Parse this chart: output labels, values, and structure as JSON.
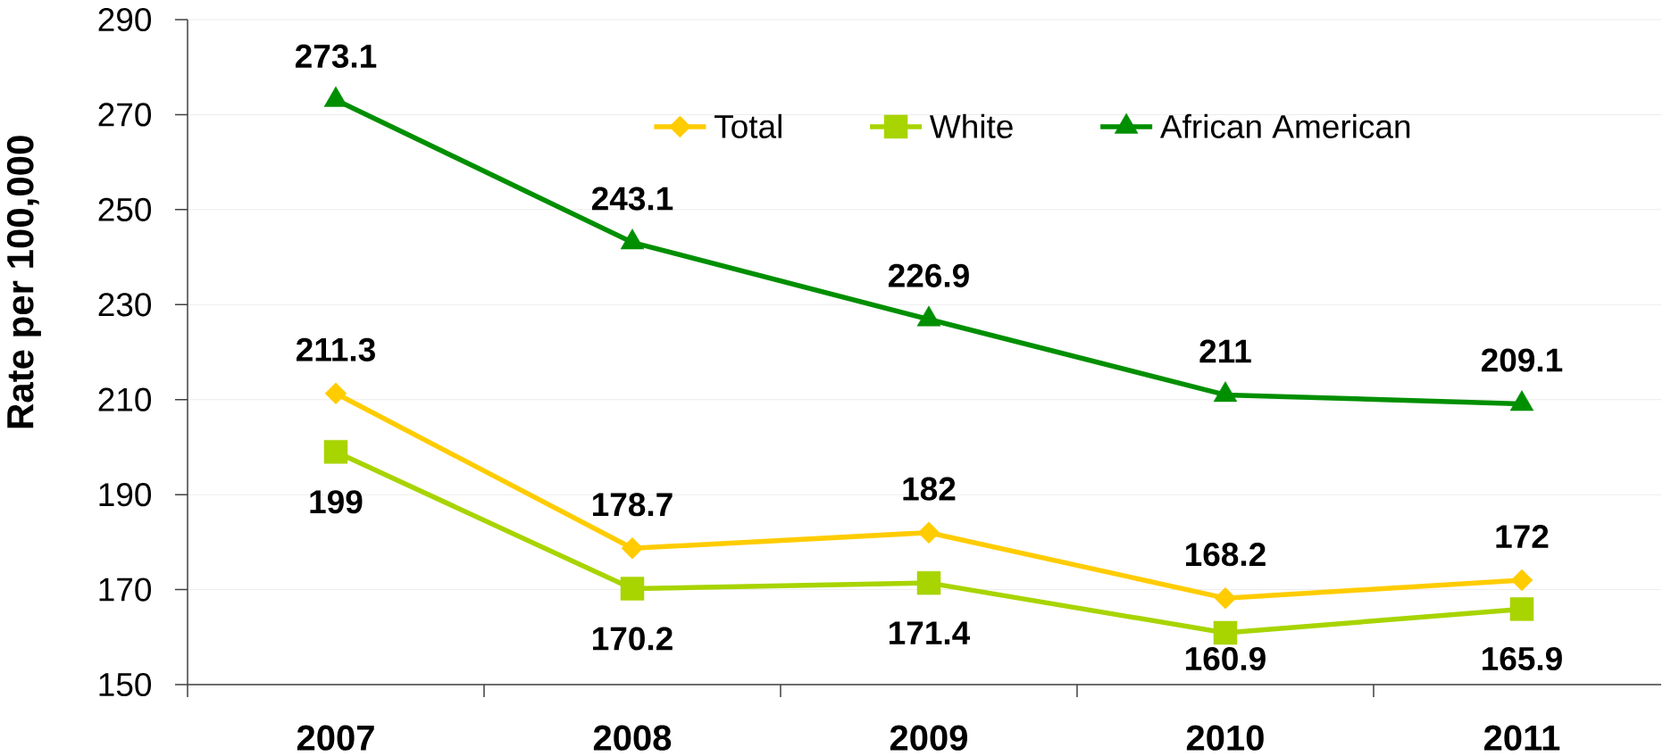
{
  "chart_data": {
    "type": "line",
    "ylabel": "Rate per 100,000",
    "categories": [
      "2007",
      "2008",
      "2009",
      "2010",
      "2011"
    ],
    "series": [
      {
        "name": "Total",
        "color": "#ffcc00",
        "marker": "diamond",
        "values": [
          211.3,
          178.7,
          182,
          168.2,
          172
        ]
      },
      {
        "name": "White",
        "color": "#a8d400",
        "marker": "square",
        "values": [
          199,
          170.2,
          171.4,
          160.9,
          165.9
        ]
      },
      {
        "name": "African American",
        "color": "#008f00",
        "marker": "triangle",
        "values": [
          273.1,
          243.1,
          226.9,
          211,
          209.1
        ]
      }
    ],
    "ylim": [
      150,
      290
    ],
    "yticks": [
      150,
      170,
      190,
      210,
      230,
      250,
      270,
      290
    ],
    "grid": "y",
    "legend": "top",
    "data_labels": true
  }
}
